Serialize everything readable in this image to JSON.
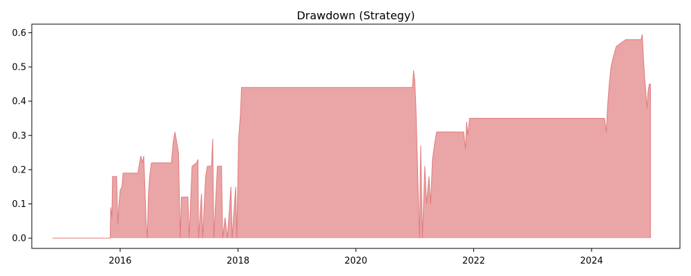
{
  "chart_data": {
    "type": "area",
    "title": "Drawdown (Strategy)",
    "xlabel": "",
    "ylabel": "",
    "x_is_date": true,
    "xlim": [
      2014.5,
      2025.5
    ],
    "ylim": [
      -0.03,
      0.625
    ],
    "x_ticks": [
      {
        "value": 2016,
        "label": "2016"
      },
      {
        "value": 2018,
        "label": "2018"
      },
      {
        "value": 2020,
        "label": "2020"
      },
      {
        "value": 2022,
        "label": "2022"
      },
      {
        "value": 2024,
        "label": "2024"
      }
    ],
    "y_ticks": [
      {
        "value": 0.0,
        "label": "0.0"
      },
      {
        "value": 0.1,
        "label": "0.1"
      },
      {
        "value": 0.2,
        "label": "0.2"
      },
      {
        "value": 0.3,
        "label": "0.3"
      },
      {
        "value": 0.4,
        "label": "0.4"
      },
      {
        "value": 0.5,
        "label": "0.5"
      },
      {
        "value": 0.6,
        "label": "0.6"
      }
    ],
    "grid": false,
    "legend": "none",
    "fill_color": "#eaa5a6",
    "line_color": "#e07a7c",
    "series": [
      {
        "values": [
          [
            2014.85,
            0.0
          ],
          [
            2015.83,
            0.0
          ],
          [
            2015.84,
            0.09
          ],
          [
            2015.86,
            0.06
          ],
          [
            2015.87,
            0.18
          ],
          [
            2015.94,
            0.18
          ],
          [
            2015.96,
            0.04
          ],
          [
            2015.98,
            0.1
          ],
          [
            2016.0,
            0.14
          ],
          [
            2016.03,
            0.15
          ],
          [
            2016.05,
            0.19
          ],
          [
            2016.3,
            0.19
          ],
          [
            2016.32,
            0.21
          ],
          [
            2016.35,
            0.24
          ],
          [
            2016.38,
            0.22
          ],
          [
            2016.4,
            0.24
          ],
          [
            2016.44,
            0.05
          ],
          [
            2016.46,
            0.0
          ],
          [
            2016.48,
            0.13
          ],
          [
            2016.5,
            0.18
          ],
          [
            2016.53,
            0.22
          ],
          [
            2016.87,
            0.22
          ],
          [
            2016.9,
            0.28
          ],
          [
            2016.93,
            0.31
          ],
          [
            2016.96,
            0.28
          ],
          [
            2016.99,
            0.25
          ],
          [
            2017.02,
            0.0
          ],
          [
            2017.04,
            0.12
          ],
          [
            2017.15,
            0.12
          ],
          [
            2017.17,
            0.0
          ],
          [
            2017.22,
            0.21
          ],
          [
            2017.3,
            0.22
          ],
          [
            2017.32,
            0.23
          ],
          [
            2017.33,
            0.0
          ],
          [
            2017.38,
            0.13
          ],
          [
            2017.4,
            0.0
          ],
          [
            2017.45,
            0.18
          ],
          [
            2017.48,
            0.21
          ],
          [
            2017.55,
            0.21
          ],
          [
            2017.57,
            0.29
          ],
          [
            2017.59,
            0.0
          ],
          [
            2017.65,
            0.21
          ],
          [
            2017.72,
            0.21
          ],
          [
            2017.74,
            0.0
          ],
          [
            2017.78,
            0.06
          ],
          [
            2017.82,
            0.0
          ],
          [
            2017.88,
            0.15
          ],
          [
            2017.9,
            0.0
          ],
          [
            2017.96,
            0.15
          ],
          [
            2017.98,
            0.0
          ],
          [
            2018.01,
            0.29
          ],
          [
            2018.04,
            0.36
          ],
          [
            2018.06,
            0.44
          ],
          [
            2020.96,
            0.44
          ],
          [
            2020.98,
            0.49
          ],
          [
            2021.0,
            0.46
          ],
          [
            2021.02,
            0.38
          ],
          [
            2021.04,
            0.25
          ],
          [
            2021.08,
            0.0
          ],
          [
            2021.1,
            0.27
          ],
          [
            2021.13,
            0.0
          ],
          [
            2021.17,
            0.21
          ],
          [
            2021.2,
            0.1
          ],
          [
            2021.24,
            0.18
          ],
          [
            2021.27,
            0.1
          ],
          [
            2021.3,
            0.23
          ],
          [
            2021.34,
            0.28
          ],
          [
            2021.37,
            0.31
          ],
          [
            2021.83,
            0.31
          ],
          [
            2021.86,
            0.26
          ],
          [
            2021.88,
            0.34
          ],
          [
            2021.9,
            0.3
          ],
          [
            2021.93,
            0.35
          ],
          [
            2024.22,
            0.35
          ],
          [
            2024.25,
            0.31
          ],
          [
            2024.27,
            0.38
          ],
          [
            2024.3,
            0.45
          ],
          [
            2024.33,
            0.5
          ],
          [
            2024.37,
            0.53
          ],
          [
            2024.42,
            0.56
          ],
          [
            2024.5,
            0.57
          ],
          [
            2024.58,
            0.58
          ],
          [
            2024.84,
            0.58
          ],
          [
            2024.86,
            0.595
          ],
          [
            2024.88,
            0.53
          ],
          [
            2024.9,
            0.47
          ],
          [
            2024.92,
            0.43
          ],
          [
            2024.94,
            0.38
          ],
          [
            2024.96,
            0.43
          ],
          [
            2024.98,
            0.45
          ],
          [
            2025.0,
            0.45
          ],
          [
            2025.0,
            0.0
          ]
        ]
      }
    ]
  }
}
